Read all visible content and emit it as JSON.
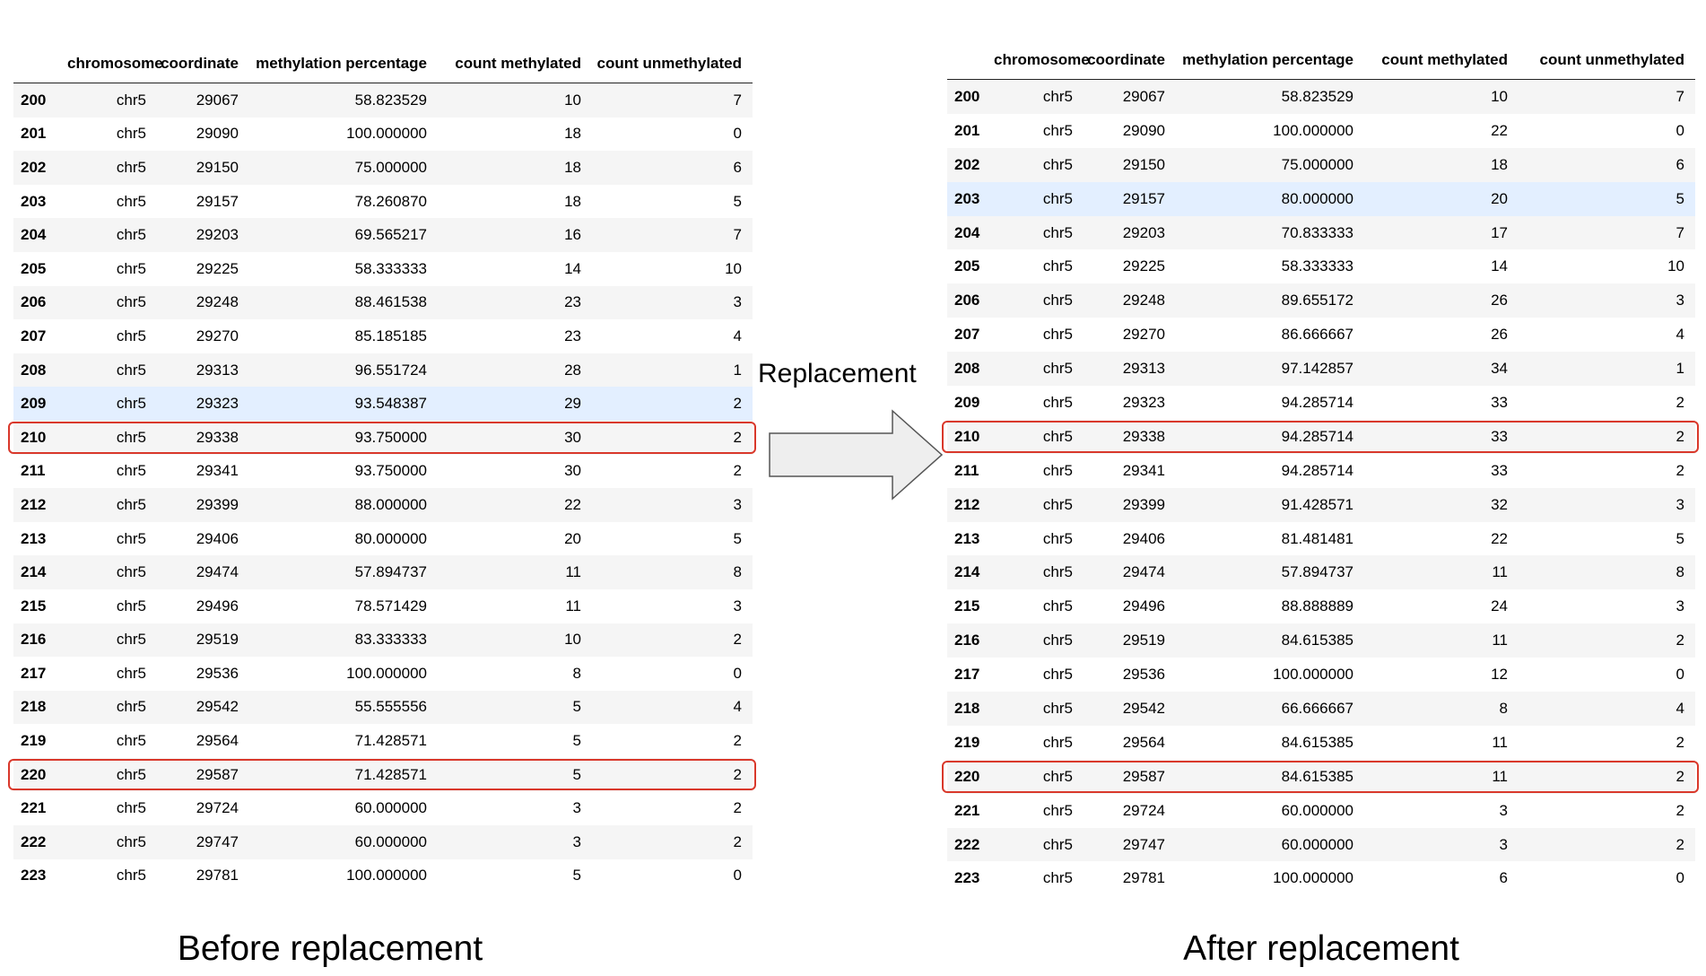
{
  "columns": [
    "",
    "chromosome",
    "coordinate",
    "methylation percentage",
    "count methylated",
    "count unmethylated"
  ],
  "before": {
    "caption": "Before replacement",
    "highlighted_index": "209",
    "outlined_indices": [
      "210",
      "220"
    ],
    "rows": [
      [
        "200",
        "chr5",
        "29067",
        "58.823529",
        "10",
        "7"
      ],
      [
        "201",
        "chr5",
        "29090",
        "100.000000",
        "18",
        "0"
      ],
      [
        "202",
        "chr5",
        "29150",
        "75.000000",
        "18",
        "6"
      ],
      [
        "203",
        "chr5",
        "29157",
        "78.260870",
        "18",
        "5"
      ],
      [
        "204",
        "chr5",
        "29203",
        "69.565217",
        "16",
        "7"
      ],
      [
        "205",
        "chr5",
        "29225",
        "58.333333",
        "14",
        "10"
      ],
      [
        "206",
        "chr5",
        "29248",
        "88.461538",
        "23",
        "3"
      ],
      [
        "207",
        "chr5",
        "29270",
        "85.185185",
        "23",
        "4"
      ],
      [
        "208",
        "chr5",
        "29313",
        "96.551724",
        "28",
        "1"
      ],
      [
        "209",
        "chr5",
        "29323",
        "93.548387",
        "29",
        "2"
      ],
      [
        "210",
        "chr5",
        "29338",
        "93.750000",
        "30",
        "2"
      ],
      [
        "211",
        "chr5",
        "29341",
        "93.750000",
        "30",
        "2"
      ],
      [
        "212",
        "chr5",
        "29399",
        "88.000000",
        "22",
        "3"
      ],
      [
        "213",
        "chr5",
        "29406",
        "80.000000",
        "20",
        "5"
      ],
      [
        "214",
        "chr5",
        "29474",
        "57.894737",
        "11",
        "8"
      ],
      [
        "215",
        "chr5",
        "29496",
        "78.571429",
        "11",
        "3"
      ],
      [
        "216",
        "chr5",
        "29519",
        "83.333333",
        "10",
        "2"
      ],
      [
        "217",
        "chr5",
        "29536",
        "100.000000",
        "8",
        "0"
      ],
      [
        "218",
        "chr5",
        "29542",
        "55.555556",
        "5",
        "4"
      ],
      [
        "219",
        "chr5",
        "29564",
        "71.428571",
        "5",
        "2"
      ],
      [
        "220",
        "chr5",
        "29587",
        "71.428571",
        "5",
        "2"
      ],
      [
        "221",
        "chr5",
        "29724",
        "60.000000",
        "3",
        "2"
      ],
      [
        "222",
        "chr5",
        "29747",
        "60.000000",
        "3",
        "2"
      ],
      [
        "223",
        "chr5",
        "29781",
        "100.000000",
        "5",
        "0"
      ]
    ]
  },
  "after": {
    "caption": "After replacement",
    "highlighted_index": "203",
    "outlined_indices": [
      "210",
      "220"
    ],
    "rows": [
      [
        "200",
        "chr5",
        "29067",
        "58.823529",
        "10",
        "7"
      ],
      [
        "201",
        "chr5",
        "29090",
        "100.000000",
        "22",
        "0"
      ],
      [
        "202",
        "chr5",
        "29150",
        "75.000000",
        "18",
        "6"
      ],
      [
        "203",
        "chr5",
        "29157",
        "80.000000",
        "20",
        "5"
      ],
      [
        "204",
        "chr5",
        "29203",
        "70.833333",
        "17",
        "7"
      ],
      [
        "205",
        "chr5",
        "29225",
        "58.333333",
        "14",
        "10"
      ],
      [
        "206",
        "chr5",
        "29248",
        "89.655172",
        "26",
        "3"
      ],
      [
        "207",
        "chr5",
        "29270",
        "86.666667",
        "26",
        "4"
      ],
      [
        "208",
        "chr5",
        "29313",
        "97.142857",
        "34",
        "1"
      ],
      [
        "209",
        "chr5",
        "29323",
        "94.285714",
        "33",
        "2"
      ],
      [
        "210",
        "chr5",
        "29338",
        "94.285714",
        "33",
        "2"
      ],
      [
        "211",
        "chr5",
        "29341",
        "94.285714",
        "33",
        "2"
      ],
      [
        "212",
        "chr5",
        "29399",
        "91.428571",
        "32",
        "3"
      ],
      [
        "213",
        "chr5",
        "29406",
        "81.481481",
        "22",
        "5"
      ],
      [
        "214",
        "chr5",
        "29474",
        "57.894737",
        "11",
        "8"
      ],
      [
        "215",
        "chr5",
        "29496",
        "88.888889",
        "24",
        "3"
      ],
      [
        "216",
        "chr5",
        "29519",
        "84.615385",
        "11",
        "2"
      ],
      [
        "217",
        "chr5",
        "29536",
        "100.000000",
        "12",
        "0"
      ],
      [
        "218",
        "chr5",
        "29542",
        "66.666667",
        "8",
        "4"
      ],
      [
        "219",
        "chr5",
        "29564",
        "84.615385",
        "11",
        "2"
      ],
      [
        "220",
        "chr5",
        "29587",
        "84.615385",
        "11",
        "2"
      ],
      [
        "221",
        "chr5",
        "29724",
        "60.000000",
        "3",
        "2"
      ],
      [
        "222",
        "chr5",
        "29747",
        "60.000000",
        "3",
        "2"
      ],
      [
        "223",
        "chr5",
        "29781",
        "100.000000",
        "6",
        "0"
      ]
    ]
  },
  "arrow_label": "Replacement",
  "colors": {
    "outline": "#d9382b",
    "row_hover": "#e3efff",
    "row_stripe": "#f5f5f5",
    "arrow_fill": "#eeeeee",
    "arrow_stroke": "#555555"
  }
}
